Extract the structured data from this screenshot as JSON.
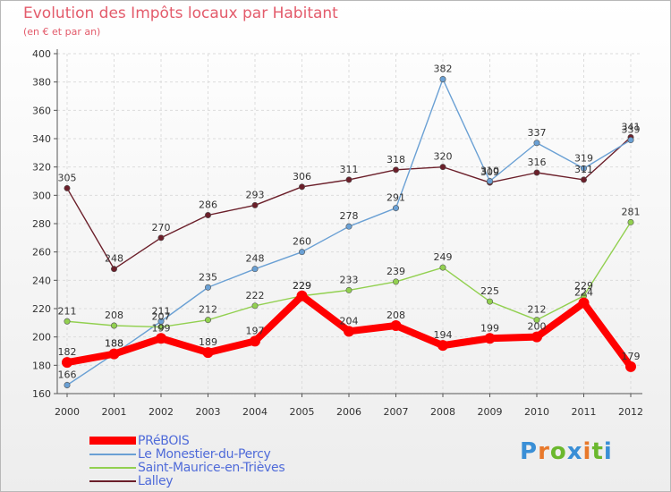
{
  "header": {
    "title": "Evolution des Impôts locaux par Habitant",
    "subtitle": "(en € et par an)"
  },
  "logo": {
    "text": "Proxiti",
    "colors": [
      "#3a8fd6",
      "#e8792b",
      "#6bb82e",
      "#3a8fd6",
      "#e8792b",
      "#6bb82e",
      "#3a8fd6"
    ]
  },
  "chart_data": {
    "type": "line",
    "categories": [
      "2000",
      "2001",
      "2002",
      "2003",
      "2004",
      "2005",
      "2006",
      "2007",
      "2008",
      "2009",
      "2010",
      "2011",
      "2012"
    ],
    "ylim": [
      160,
      400
    ],
    "yticks": [
      160,
      180,
      200,
      220,
      240,
      260,
      280,
      300,
      320,
      340,
      360,
      380,
      400
    ],
    "grid": true,
    "legend_position": "bottom-left",
    "series": [
      {
        "name": "PRéBOIS",
        "color": "#ff0000",
        "values": [
          182,
          188,
          199,
          189,
          197,
          229,
          204,
          208,
          194,
          199,
          200,
          224,
          179
        ],
        "labels": [
          "182",
          "188",
          "199",
          "189",
          "197",
          "229",
          "204",
          "208",
          "194",
          "199",
          "200",
          "224",
          "179"
        ],
        "bold": true
      },
      {
        "name": "Le Monestier-du-Percy",
        "color": "#6aa0d4",
        "values": [
          166,
          188,
          211,
          235,
          248,
          260,
          278,
          291,
          382,
          310,
          337,
          319,
          339
        ],
        "labels": [
          "166",
          "188",
          "211",
          "235",
          "248",
          "260",
          "278",
          "291",
          "382",
          "310",
          "337",
          "319",
          "339"
        ]
      },
      {
        "name": "Saint-Maurice-en-Trièves",
        "color": "#92d050",
        "values": [
          211,
          208,
          207,
          212,
          222,
          229,
          233,
          239,
          249,
          225,
          212,
          229,
          281
        ],
        "labels": [
          "211",
          "208",
          "207",
          "212",
          "222",
          "229",
          "233",
          "239",
          "249",
          "225",
          "212",
          "229",
          "281"
        ]
      },
      {
        "name": "Lalley",
        "color": "#6b1f2a",
        "values": [
          305,
          248,
          270,
          286,
          293,
          306,
          311,
          318,
          320,
          309,
          316,
          311,
          341
        ],
        "labels": [
          "305",
          "248",
          "270",
          "286",
          "293",
          "306",
          "311",
          "318",
          "320",
          "309",
          "316",
          "311",
          "341"
        ]
      }
    ]
  }
}
